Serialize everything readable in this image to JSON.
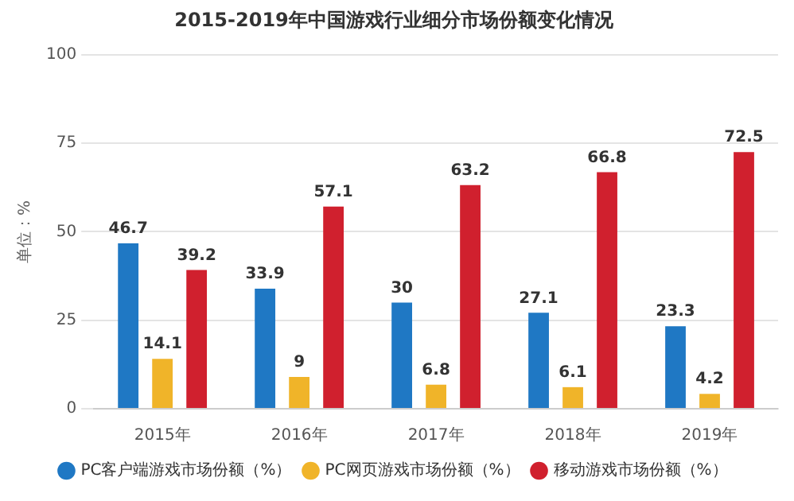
{
  "chart_data": {
    "type": "bar",
    "title": "2015-2019年中国游戏行业细分市场份额变化情况",
    "ylabel": "单位：%",
    "categories": [
      "2015年",
      "2016年",
      "2017年",
      "2018年",
      "2019年"
    ],
    "series": [
      {
        "name": "PC客户端游戏市场份额（%）",
        "color": "#1f78c4",
        "values": [
          46.7,
          33.9,
          30,
          27.1,
          23.3
        ]
      },
      {
        "name": "PC网页游戏市场份额（%）",
        "color": "#f0b429",
        "values": [
          14.1,
          9,
          6.8,
          6.1,
          4.2
        ]
      },
      {
        "name": "移动游戏市场份额（%）",
        "color": "#d0202e",
        "values": [
          39.2,
          57.1,
          63.2,
          66.8,
          72.5
        ]
      }
    ],
    "ylim": [
      0,
      100
    ],
    "yticks": [
      0,
      25,
      50,
      75,
      100
    ],
    "grid": "y",
    "legend": "bottom",
    "marker": "circle",
    "data_labels": true
  }
}
